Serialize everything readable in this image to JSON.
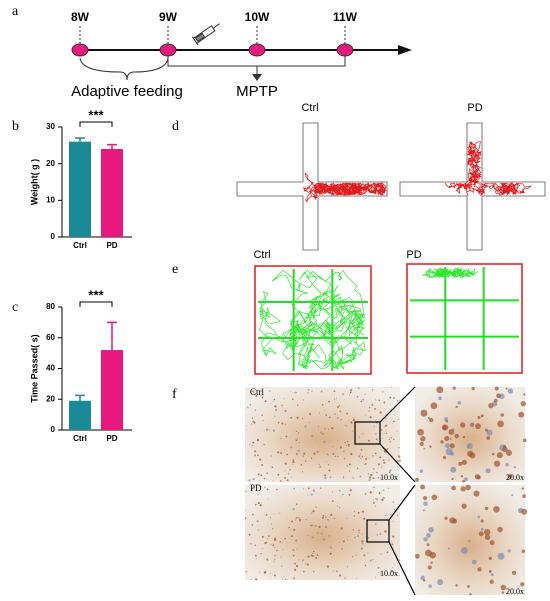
{
  "panel_labels": [
    "a",
    "b",
    "c",
    "d",
    "e",
    "f"
  ],
  "timeline": {
    "weeks": [
      "8W",
      "9W",
      "10W",
      "11W"
    ],
    "phase1": "Adaptive feeding",
    "phase2": "MPTP"
  },
  "chart_data": [
    {
      "type": "bar",
      "ylabel": "Weight( g )",
      "categories": [
        "Ctrl",
        "PD"
      ],
      "values": [
        26,
        24
      ],
      "errors": [
        1,
        1.2
      ],
      "colors": [
        "#1a8a98",
        "#e8197e"
      ],
      "ylim": [
        0,
        30
      ],
      "yticks": [
        0,
        10,
        20,
        30
      ],
      "significance": "***"
    },
    {
      "type": "bar",
      "ylabel": "Time Passed( s)",
      "categories": [
        "Ctrl",
        "PD"
      ],
      "values": [
        19,
        52
      ],
      "errors": [
        3.5,
        18
      ],
      "colors": [
        "#1a8a98",
        "#e8197e"
      ],
      "ylim": [
        0,
        80
      ],
      "yticks": [
        0,
        20,
        40,
        60,
        80
      ],
      "significance": "***"
    }
  ],
  "maze": {
    "groups": [
      "Ctrl",
      "PD"
    ]
  },
  "open_field": {
    "groups": [
      "Ctrl",
      "PD"
    ]
  },
  "histology": {
    "groups": [
      "Ctrl",
      "PD"
    ],
    "low_mag": "10.0x",
    "high_mag": "20.0x"
  }
}
